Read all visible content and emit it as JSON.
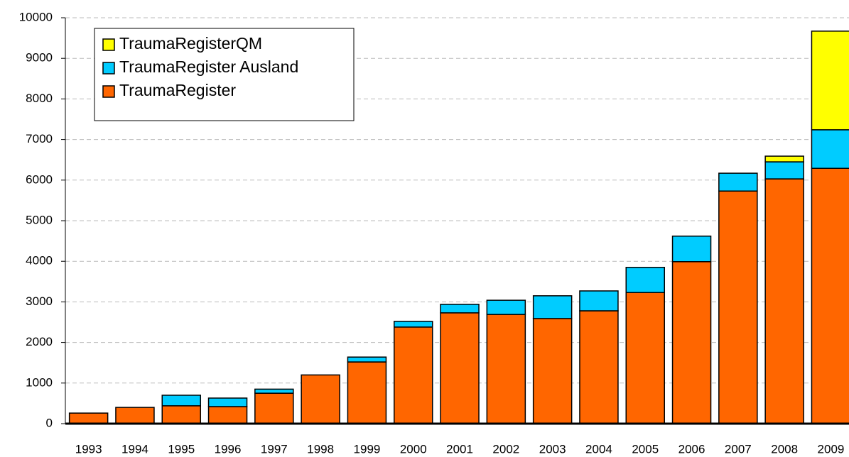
{
  "chart_data": {
    "type": "stacked_bar",
    "categories": [
      "1993",
      "1994",
      "1995",
      "1996",
      "1997",
      "1998",
      "1999",
      "2000",
      "2001",
      "2002",
      "2003",
      "2004",
      "2005",
      "2006",
      "2007",
      "2008",
      "2009"
    ],
    "series": [
      {
        "name": "TraumaRegister",
        "color": "#ff6600",
        "values": [
          260,
          400,
          440,
          420,
          750,
          1200,
          1520,
          2380,
          2730,
          2690,
          2590,
          2780,
          3230,
          3990,
          5730,
          6030,
          6290
        ]
      },
      {
        "name": "TraumaRegister Ausland",
        "color": "#00ccff",
        "values": [
          0,
          0,
          260,
          210,
          100,
          0,
          120,
          140,
          210,
          350,
          560,
          490,
          620,
          630,
          440,
          420,
          950
        ]
      },
      {
        "name": "TraumaRegisterQM",
        "color": "#ffff00",
        "values": [
          0,
          0,
          0,
          0,
          0,
          0,
          0,
          0,
          0,
          0,
          0,
          0,
          0,
          0,
          0,
          140,
          2430
        ]
      }
    ],
    "ylim": [
      0,
      10000
    ],
    "yticks": [
      0,
      1000,
      2000,
      3000,
      4000,
      5000,
      6000,
      7000,
      8000,
      9000,
      10000
    ],
    "grid": true,
    "legend": "top-left"
  }
}
